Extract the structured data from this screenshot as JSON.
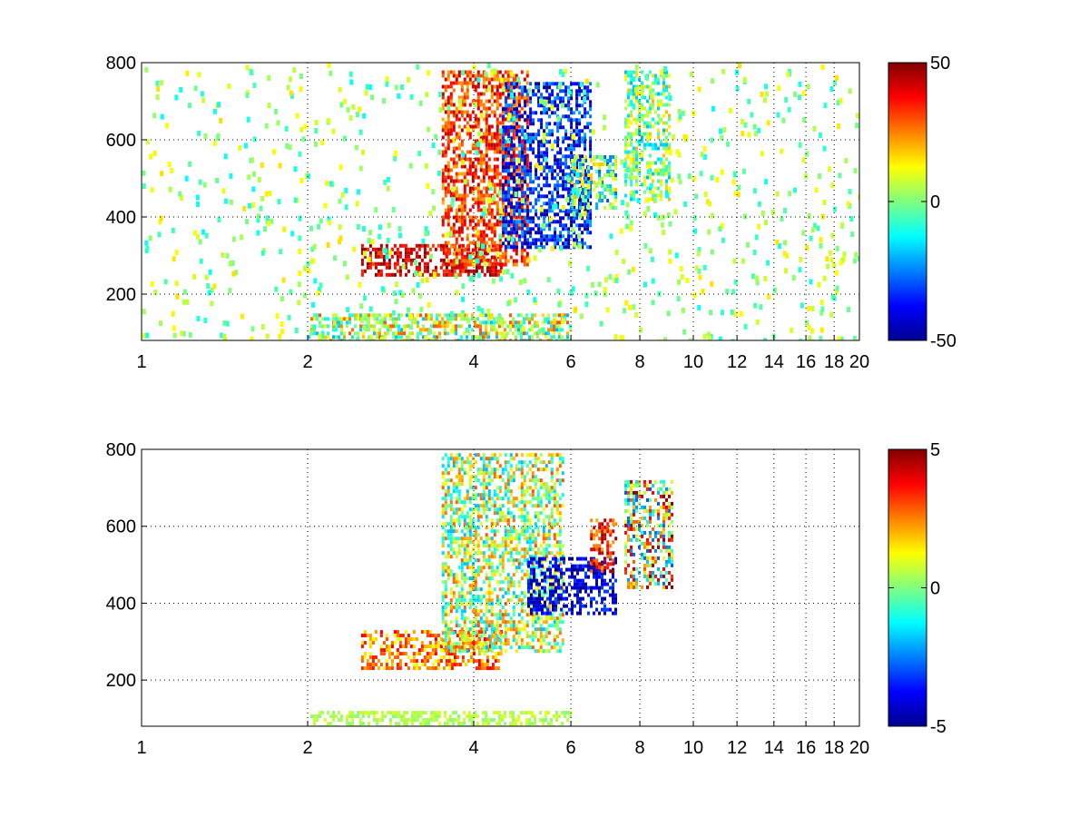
{
  "figure": {
    "background": "#ffffff",
    "colormap": "jet"
  },
  "chart_data": [
    {
      "type": "heatmap",
      "title": "",
      "xlabel": "",
      "ylabel": "",
      "x_scale": "log",
      "xlim": [
        1,
        20
      ],
      "ylim": [
        80,
        800
      ],
      "xticks": [
        1,
        2,
        4,
        6,
        8,
        10,
        12,
        14,
        16,
        18,
        20
      ],
      "xtick_labels": [
        "1",
        "2",
        "4",
        "6",
        "8",
        "10",
        "12",
        "14",
        "16",
        "18",
        "20"
      ],
      "yticks": [
        200,
        400,
        600,
        800
      ],
      "ytick_labels": [
        "200",
        "400",
        "600",
        "800"
      ],
      "grid": true,
      "colorbar": {
        "min": -50,
        "max": 50,
        "ticks": [
          50,
          0,
          -50
        ],
        "tick_labels": [
          "50",
          "0",
          "-50"
        ]
      },
      "features": [
        {
          "x_range": [
            2.5,
            4.5
          ],
          "y_range": [
            250,
            330
          ],
          "value_range": [
            30,
            50
          ]
        },
        {
          "x_range": [
            3.5,
            5.0
          ],
          "y_range": [
            280,
            780
          ],
          "value_range": [
            20,
            45
          ]
        },
        {
          "x_range": [
            4.5,
            6.5
          ],
          "y_range": [
            320,
            750
          ],
          "value_range": [
            -50,
            -20
          ]
        },
        {
          "x_range": [
            6.0,
            7.2
          ],
          "y_range": [
            420,
            560
          ],
          "value_range": [
            -30,
            20
          ]
        },
        {
          "x_range": [
            7.5,
            9.0
          ],
          "y_range": [
            450,
            780
          ],
          "value_range": [
            -20,
            20
          ]
        },
        {
          "x_range": [
            2.0,
            6.0
          ],
          "y_range": [
            80,
            150
          ],
          "value_range": [
            -20,
            30
          ]
        }
      ]
    },
    {
      "type": "heatmap",
      "title": "",
      "xlabel": "",
      "ylabel": "",
      "x_scale": "log",
      "xlim": [
        1,
        20
      ],
      "ylim": [
        80,
        800
      ],
      "xticks": [
        1,
        2,
        4,
        6,
        8,
        10,
        12,
        14,
        16,
        18,
        20
      ],
      "xtick_labels": [
        "1",
        "2",
        "4",
        "6",
        "8",
        "10",
        "12",
        "14",
        "16",
        "18",
        "20"
      ],
      "yticks": [
        200,
        400,
        600,
        800
      ],
      "ytick_labels": [
        "200",
        "400",
        "600",
        "800"
      ],
      "grid": true,
      "colorbar": {
        "min": -5,
        "max": 5,
        "ticks": [
          5,
          0,
          -5
        ],
        "tick_labels": [
          "5",
          "0",
          "-5"
        ]
      },
      "features": [
        {
          "x_range": [
            2.5,
            4.5
          ],
          "y_range": [
            230,
            330
          ],
          "value_range": [
            1,
            4
          ]
        },
        {
          "x_range": [
            3.5,
            5.8
          ],
          "y_range": [
            280,
            790
          ],
          "value_range": [
            -2,
            3
          ]
        },
        {
          "x_range": [
            5.0,
            7.2
          ],
          "y_range": [
            370,
            520
          ],
          "value_range": [
            -5,
            -3
          ]
        },
        {
          "x_range": [
            6.5,
            7.2
          ],
          "y_range": [
            480,
            620
          ],
          "value_range": [
            2,
            5
          ]
        },
        {
          "x_range": [
            7.5,
            9.2
          ],
          "y_range": [
            440,
            720
          ],
          "value_range": [
            -3,
            5
          ]
        },
        {
          "x_range": [
            2.0,
            6.0
          ],
          "y_range": [
            80,
            120
          ],
          "value_range": [
            0,
            1
          ]
        }
      ]
    }
  ]
}
